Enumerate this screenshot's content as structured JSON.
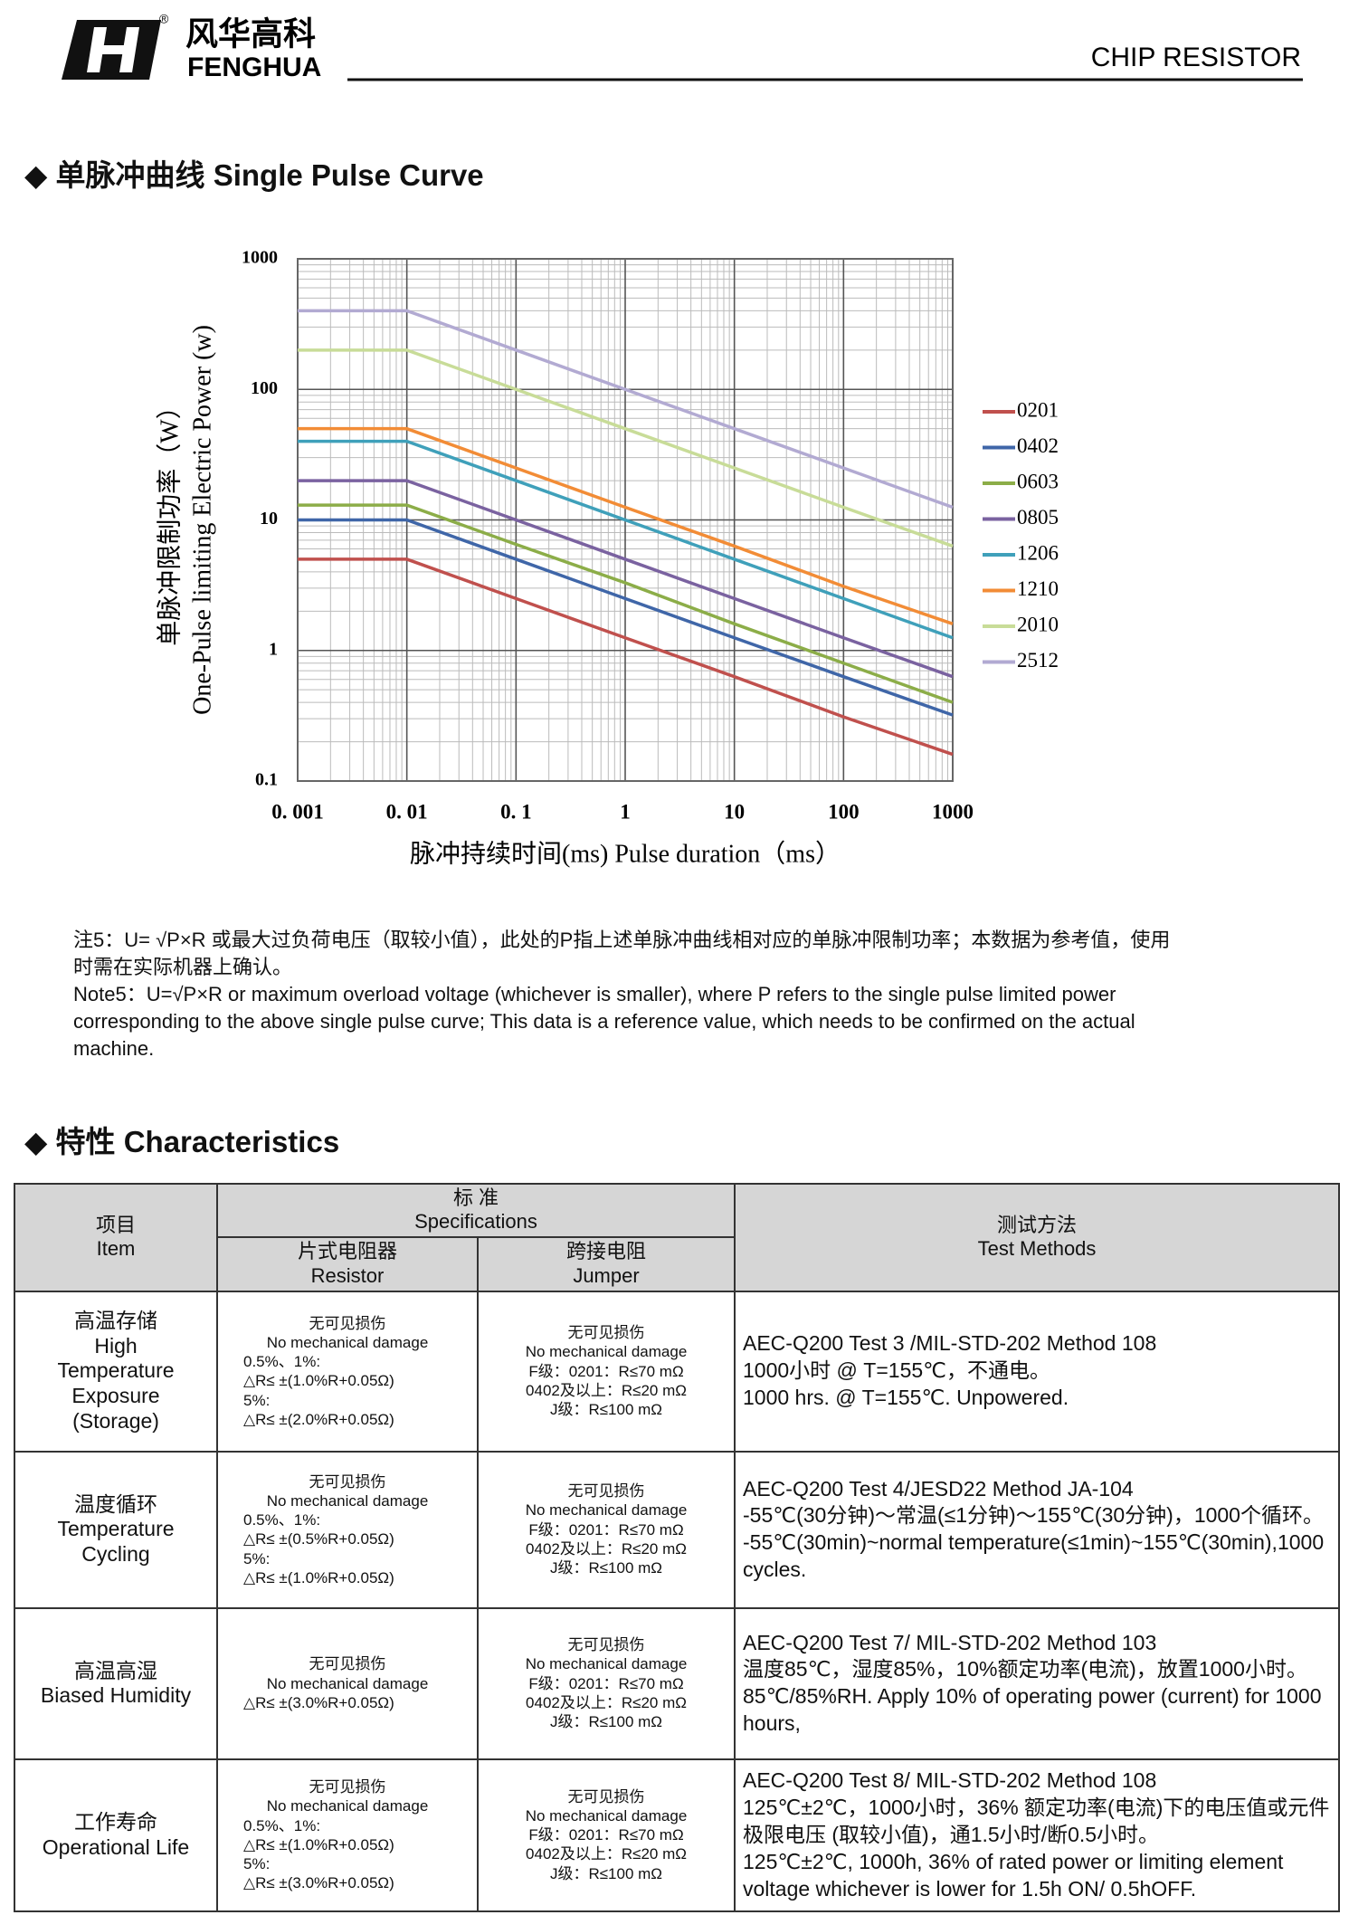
{
  "header": {
    "brand_cn": "风华高科",
    "brand_en": "FENGHUA",
    "registered": "®",
    "product": "CHIP RESISTOR"
  },
  "section1": {
    "title": "◆ 单脉冲曲线  Single Pulse Curve"
  },
  "chart_data": {
    "type": "line",
    "x_label": "脉冲持续时间(ms) Pulse duration（ms）",
    "y_label": [
      "单脉冲限制功率（W）",
      "One-Pulse limiting Electric Power (w)"
    ],
    "log_x": true,
    "log_y": true,
    "grid": true,
    "legend": "right",
    "x": [
      0.001,
      0.01,
      0.1,
      1,
      10,
      100,
      1000
    ],
    "series": [
      {
        "name": "0201",
        "color": "#c0504d",
        "values": [
          5,
          5,
          2.5,
          1.25,
          0.63,
          0.31,
          0.16
        ]
      },
      {
        "name": "0402",
        "color": "#3f66a8",
        "values": [
          10,
          10,
          5,
          2.5,
          1.25,
          0.63,
          0.32
        ]
      },
      {
        "name": "0603",
        "color": "#8cad48",
        "values": [
          13,
          13,
          6.5,
          3.3,
          1.6,
          0.8,
          0.4
        ]
      },
      {
        "name": "0805",
        "color": "#7a62a0",
        "values": [
          20,
          20,
          10,
          5,
          2.5,
          1.25,
          0.63
        ]
      },
      {
        "name": "1206",
        "color": "#3fa0ba",
        "values": [
          40,
          40,
          20,
          10,
          5,
          2.5,
          1.25
        ]
      },
      {
        "name": "1210",
        "color": "#f28c36",
        "values": [
          50,
          50,
          25,
          12.5,
          6.3,
          3.1,
          1.6
        ]
      },
      {
        "name": "2010",
        "color": "#c8dc98",
        "values": [
          200,
          200,
          100,
          50,
          25,
          12.5,
          6.3
        ]
      },
      {
        "name": "2512",
        "color": "#b2aad2",
        "values": [
          400,
          400,
          200,
          100,
          50,
          25,
          12.5
        ]
      }
    ],
    "xlim": [
      0.001,
      1000
    ],
    "ylim": [
      0.1,
      1000
    ],
    "xticks": [
      {
        "value": 0.001,
        "label": "0. 001"
      },
      {
        "value": 0.01,
        "label": "0. 01"
      },
      {
        "value": 0.1,
        "label": "0. 1"
      },
      1,
      10,
      100,
      1000
    ],
    "yticks": [
      0.1,
      1,
      10,
      100,
      1000
    ]
  },
  "note": {
    "cn": "注5：U= √P×R  或最大过负荷电压（取较小值），此处的P指上述单脉冲曲线相对应的单脉冲限制功率；本数据为参考值，使用时需在实际机器上确认。",
    "en": "Note5：U=√P×R or maximum overload voltage (whichever is smaller), where P refers to the single pulse limited power corresponding to the above single pulse curve; This data is a reference value, which needs to be confirmed on the actual machine."
  },
  "section2": {
    "title": "◆ 特性  Characteristics"
  },
  "table": {
    "header": {
      "item": [
        "项目",
        "Item"
      ],
      "spec": [
        "标 准",
        "Specifications"
      ],
      "resistor": [
        "片式电阻器",
        "Resistor"
      ],
      "jumper": [
        "跨接电阻",
        "Jumper"
      ],
      "method": [
        "测试方法",
        "Test Methods"
      ]
    },
    "rows": [
      {
        "item": [
          "高温存储",
          "High",
          "Temperature",
          "Exposure",
          "(Storage)"
        ],
        "resistor": [
          "无可见损伤",
          "No mechanical damage",
          "0.5%、1%:",
          "△R≤ ±(1.0%R+0.05Ω)",
          "5%:",
          "△R≤ ±(2.0%R+0.05Ω)"
        ],
        "jumper": [
          "无可见损伤",
          "No mechanical damage",
          "F级：0201：R≤70 mΩ",
          "0402及以上：R≤20 mΩ",
          "J级：R≤100 mΩ"
        ],
        "method": [
          "AEC-Q200 Test 3 /MIL-STD-202 Method 108",
          "1000小时 @ T=155℃，不通电。",
          "1000 hrs. @ T=155℃. Unpowered."
        ]
      },
      {
        "item": [
          "温度循环",
          "Temperature",
          "Cycling"
        ],
        "resistor": [
          "无可见损伤",
          "No mechanical damage",
          "0.5%、1%:",
          "△R≤ ±(0.5%R+0.05Ω)",
          "5%:",
          "△R≤ ±(1.0%R+0.05Ω)"
        ],
        "jumper": [
          "无可见损伤",
          "No mechanical damage",
          "F级：0201：R≤70 mΩ",
          "0402及以上：R≤20 mΩ",
          "J级：R≤100 mΩ"
        ],
        "method": [
          "AEC-Q200 Test  4/JESD22 Method JA-104",
          "-55℃(30分钟)～常温(≤1分钟)～155℃(30分钟)，1000个循环。",
          "-55℃(30min)~normal temperature(≤1min)~155℃(30min),1000 cycles."
        ]
      },
      {
        "item": [
          "高温高湿",
          "Biased Humidity"
        ],
        "resistor": [
          "无可见损伤",
          "No mechanical damage",
          "△R≤ ±(3.0%R+0.05Ω)"
        ],
        "jumper": [
          "无可见损伤",
          "No mechanical damage",
          "F级：0201：R≤70 mΩ",
          "0402及以上：R≤20 mΩ",
          "J级：R≤100 mΩ"
        ],
        "method": [
          "AEC-Q200 Test  7/ MIL-STD-202 Method 103",
          "温度85℃，湿度85%，10%额定功率(电流)，放置1000小时。",
          "85℃/85%RH.  Apply 10% of operating power (current) for 1000 hours,"
        ]
      },
      {
        "item": [
          "工作寿命",
          "Operational Life"
        ],
        "resistor": [
          "无可见损伤",
          "No mechanical damage",
          "0.5%、1%:",
          "△R≤ ±(1.0%R+0.05Ω)",
          "5%:",
          "△R≤ ±(3.0%R+0.05Ω)"
        ],
        "jumper": [
          "无可见损伤",
          "No mechanical damage",
          "F级：0201：R≤70 mΩ",
          "0402及以上：R≤20 mΩ",
          "J级：R≤100 mΩ"
        ],
        "method": [
          "AEC-Q200 Test  8/ MIL-STD-202 Method 108",
          "125℃±2℃，1000小时，36% 额定功率(电流)下的电压值或元件极限电压 (取较小值)，通1.5小时/断0.5小时。",
          "125℃±2℃, 1000h, 36% of rated power or limiting element voltage whichever is lower for 1.5h ON/ 0.5hOFF."
        ]
      }
    ]
  }
}
